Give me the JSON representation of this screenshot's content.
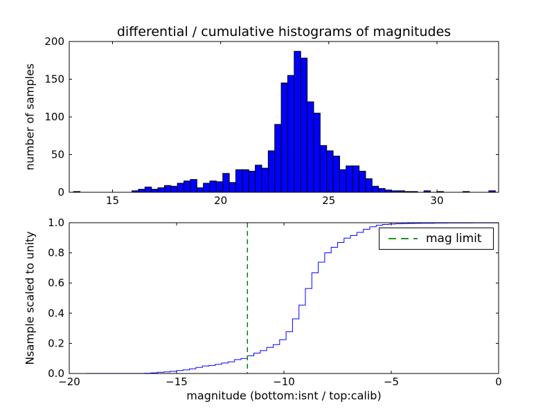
{
  "chart_data": [
    {
      "type": "bar",
      "role": "differential-histogram",
      "title": "differential / cumulative histograms of magnitudes",
      "xlabel": "",
      "ylabel": "number of samples",
      "xlim": [
        13.0,
        32.85
      ],
      "ylim": [
        0,
        200
      ],
      "grid": false,
      "xticks": [
        {
          "v": 15,
          "label": "15"
        },
        {
          "v": 20,
          "label": "20"
        },
        {
          "v": 25,
          "label": "25"
        },
        {
          "v": 30,
          "label": "30"
        }
      ],
      "yticks": [
        {
          "v": 0,
          "label": "0"
        },
        {
          "v": 50,
          "label": "50"
        },
        {
          "v": 100,
          "label": "100"
        },
        {
          "v": 150,
          "label": "150"
        },
        {
          "v": 200,
          "label": "200"
        }
      ],
      "bar_color": "#0000ff",
      "bar_edge_color": "#000000",
      "bin_start": 13.2,
      "bin_width": 0.3,
      "counts": [
        1,
        0,
        0,
        0,
        0,
        0,
        0,
        0,
        0,
        2,
        4,
        7,
        4,
        6,
        9,
        8,
        12,
        15,
        17,
        6,
        12,
        15,
        14,
        25,
        13,
        30,
        30,
        28,
        36,
        32,
        55,
        90,
        145,
        155,
        187,
        178,
        120,
        105,
        62,
        55,
        48,
        30,
        35,
        35,
        28,
        18,
        8,
        5,
        3,
        2,
        2,
        1,
        1,
        0,
        2,
        0,
        1,
        0,
        0,
        0,
        1,
        0,
        0,
        0,
        2
      ]
    },
    {
      "type": "line",
      "role": "cumulative-histogram",
      "title": "",
      "xlabel": "magnitude (bottom:isnt / top:calib)",
      "ylabel": "Nsample scaled to unity",
      "xlim": [
        -20,
        0
      ],
      "ylim": [
        0.0,
        1.0
      ],
      "grid": false,
      "xticks": [
        {
          "v": -20,
          "label": "−20"
        },
        {
          "v": -15,
          "label": "−15"
        },
        {
          "v": -10,
          "label": "−10"
        },
        {
          "v": -5,
          "label": "−5"
        },
        {
          "v": 0,
          "label": "0"
        }
      ],
      "yticks": [
        {
          "v": 0.0,
          "label": "0.0"
        },
        {
          "v": 0.2,
          "label": "0.2"
        },
        {
          "v": 0.4,
          "label": "0.4"
        },
        {
          "v": 0.6,
          "label": "0.6"
        },
        {
          "v": 0.8,
          "label": "0.8"
        },
        {
          "v": 1.0,
          "label": "1.0"
        }
      ],
      "line_color": "#0000ff",
      "x_offset_from_top": -32.4,
      "mag_limit": {
        "x": -11.7,
        "color": "#008000",
        "linestyle": "dashed",
        "label": "mag limit"
      },
      "legend": {
        "position": "upper right",
        "entries": [
          "mag limit"
        ]
      }
    }
  ]
}
